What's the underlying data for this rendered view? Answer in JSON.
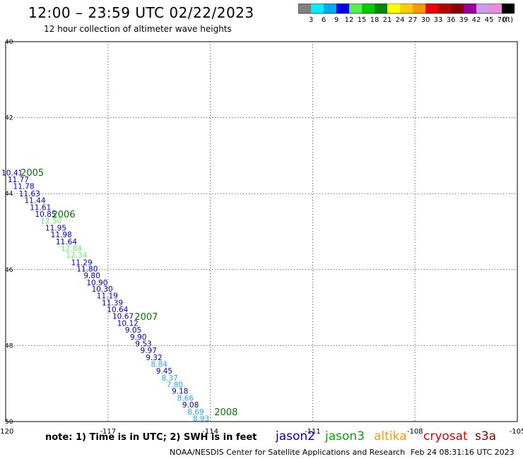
{
  "header": {
    "title": "12:00 – 23:59 UTC 02/22/2023",
    "subtitle": "12 hour collection of altimeter wave heights"
  },
  "colorbar": {
    "colors": [
      "#808080",
      "#00eeff",
      "#00aaee",
      "#0000ee",
      "#55ee55",
      "#00cc00",
      "#008800",
      "#ffff00",
      "#ffcc00",
      "#ff9900",
      "#ee0000",
      "#bb0000",
      "#880000",
      "#990099",
      "#cc99ee",
      "#ee88dd",
      "#000000"
    ],
    "labels": [
      "3",
      "6",
      "9",
      "12",
      "15",
      "18",
      "21",
      "24",
      "27",
      "30",
      "33",
      "36",
      "39",
      "42",
      "45",
      "70"
    ],
    "unit": "(ft)"
  },
  "chart_data": {
    "type": "scatter",
    "xlim": [
      -120,
      -105
    ],
    "ylim": [
      50,
      40
    ],
    "x_ticks": [
      -120,
      -117,
      -114,
      -111,
      -108,
      -105
    ],
    "x_tick_labels": [
      "-120",
      "-117",
      "-114",
      "-111",
      "-108",
      "-105"
    ],
    "y_ticks": [
      40,
      42,
      44,
      46,
      48,
      50
    ],
    "y_tick_labels": [
      "40",
      "42",
      "44",
      "46",
      "48",
      "50"
    ],
    "grid": true,
    "track_colors": {
      "jason2": "#0000bb",
      "light_green": "#66ee66",
      "light_blue": "#22aaee"
    },
    "points": [
      {
        "lon": -119.81,
        "lat": 43.52,
        "value": "10.41",
        "sat": "jason2"
      },
      {
        "lon": -119.63,
        "lat": 43.7,
        "value": "11.77",
        "sat": "jason2"
      },
      {
        "lon": -119.47,
        "lat": 43.88,
        "value": "11.78",
        "sat": "jason2"
      },
      {
        "lon": -119.3,
        "lat": 44.07,
        "value": "11.63",
        "sat": "jason2"
      },
      {
        "lon": -119.14,
        "lat": 44.25,
        "value": "11.44",
        "sat": "jason2"
      },
      {
        "lon": -118.98,
        "lat": 44.43,
        "value": "11.61",
        "sat": "jason2"
      },
      {
        "lon": -118.83,
        "lat": 44.61,
        "value": "10.85",
        "sat": "jason2"
      },
      {
        "lon": -118.67,
        "lat": 44.79,
        "value": "12.50",
        "sat": "light_green"
      },
      {
        "lon": -118.53,
        "lat": 44.97,
        "value": "11.95",
        "sat": "jason2"
      },
      {
        "lon": -118.37,
        "lat": 45.15,
        "value": "11.98",
        "sat": "jason2"
      },
      {
        "lon": -118.22,
        "lat": 45.33,
        "value": "11.64",
        "sat": "jason2"
      },
      {
        "lon": -118.07,
        "lat": 45.51,
        "value": "12.84",
        "sat": "light_green"
      },
      {
        "lon": -117.92,
        "lat": 45.69,
        "value": "12.34",
        "sat": "light_green"
      },
      {
        "lon": -117.77,
        "lat": 45.88,
        "value": "11.29",
        "sat": "jason2"
      },
      {
        "lon": -117.61,
        "lat": 46.05,
        "value": "11.80",
        "sat": "jason2"
      },
      {
        "lon": -117.47,
        "lat": 46.23,
        "value": "9.80",
        "sat": "jason2"
      },
      {
        "lon": -117.32,
        "lat": 46.41,
        "value": "10.90",
        "sat": "jason2"
      },
      {
        "lon": -117.17,
        "lat": 46.58,
        "value": "10.30",
        "sat": "jason2"
      },
      {
        "lon": -117.02,
        "lat": 46.76,
        "value": "11.19",
        "sat": "jason2"
      },
      {
        "lon": -116.87,
        "lat": 46.94,
        "value": "11.39",
        "sat": "jason2"
      },
      {
        "lon": -116.72,
        "lat": 47.12,
        "value": "10.64",
        "sat": "jason2"
      },
      {
        "lon": -116.56,
        "lat": 47.3,
        "value": "10.67",
        "sat": "jason2"
      },
      {
        "lon": -116.42,
        "lat": 47.48,
        "value": "10.12",
        "sat": "jason2"
      },
      {
        "lon": -116.26,
        "lat": 47.66,
        "value": "9.05",
        "sat": "jason2"
      },
      {
        "lon": -116.11,
        "lat": 47.84,
        "value": "9.90",
        "sat": "jason2"
      },
      {
        "lon": -115.96,
        "lat": 48.02,
        "value": "9.53",
        "sat": "jason2"
      },
      {
        "lon": -115.81,
        "lat": 48.2,
        "value": "9.97",
        "sat": "jason2"
      },
      {
        "lon": -115.65,
        "lat": 48.38,
        "value": "9.32",
        "sat": "jason2"
      },
      {
        "lon": -115.5,
        "lat": 48.56,
        "value": "8.84",
        "sat": "light_blue"
      },
      {
        "lon": -115.35,
        "lat": 48.74,
        "value": "9.45",
        "sat": "jason2"
      },
      {
        "lon": -115.19,
        "lat": 48.92,
        "value": "8.37",
        "sat": "light_blue"
      },
      {
        "lon": -115.04,
        "lat": 49.1,
        "value": "7.80",
        "sat": "light_blue"
      },
      {
        "lon": -114.89,
        "lat": 49.27,
        "value": "9.18",
        "sat": "jason2"
      },
      {
        "lon": -114.73,
        "lat": 49.45,
        "value": "8.66",
        "sat": "light_blue"
      },
      {
        "lon": -114.58,
        "lat": 49.63,
        "value": "9.08",
        "sat": "jason2"
      },
      {
        "lon": -114.43,
        "lat": 49.81,
        "value": "8.69",
        "sat": "light_blue"
      },
      {
        "lon": -114.27,
        "lat": 49.99,
        "value": "8.93",
        "sat": "light_blue"
      }
    ],
    "time_labels": [
      {
        "lon": -119.22,
        "lat": 43.53,
        "text": "2005"
      },
      {
        "lon": -118.3,
        "lat": 44.63,
        "text": "2006"
      },
      {
        "lon": -115.88,
        "lat": 47.32,
        "text": "2007"
      },
      {
        "lon": -113.54,
        "lat": 49.83,
        "text": "2008"
      }
    ]
  },
  "footer": {
    "note": "note:  1) Time is in UTC; 2) SWH is in feet",
    "satellites": [
      {
        "name": "jason2",
        "color": "#0000cc"
      },
      {
        "name": "jason3",
        "color": "#00aa00"
      },
      {
        "name": "altika",
        "color": "#ff9900"
      },
      {
        "name": "cryosat",
        "color": "#dd0000"
      },
      {
        "name": "s3a",
        "color": "#880000"
      }
    ],
    "credit": "NOAA/NESDIS Center for Satellite Applications and Research",
    "timestamp": "Feb 24 08:31:16 UTC 2023"
  }
}
